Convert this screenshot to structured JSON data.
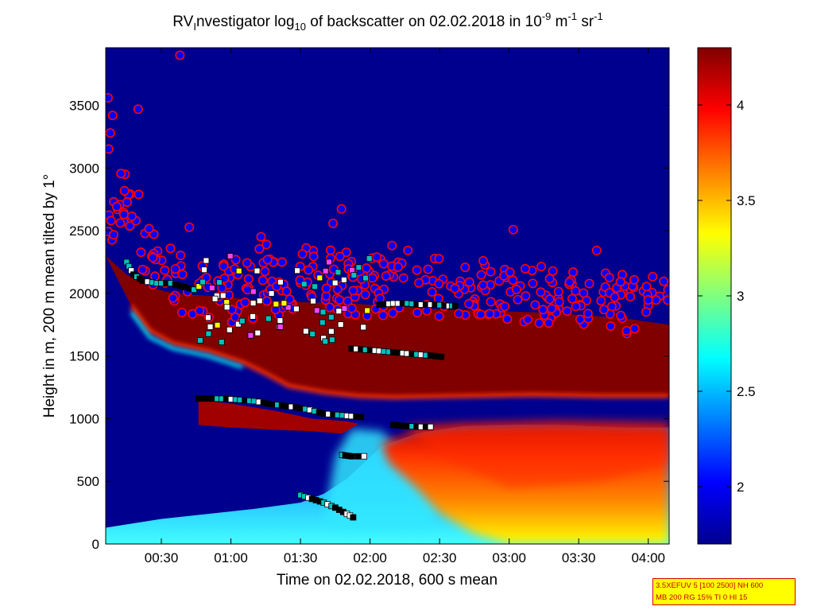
{
  "chart_data": {
    "type": "heatmap",
    "title": {
      "prefix": "RV",
      "sub_i": "I",
      "a": "nvestigator log",
      "sub_10": "10",
      "b": " of backscatter on 02.02.2018 in 10",
      "sup_m9": "-9",
      "c": " m",
      "sup_m1a": "-1",
      "d": " sr",
      "sup_m1b": "-1"
    },
    "xlabel": "Time on 02.02.2018, 600 s mean",
    "ylabel": "Height in m, 200 m mean tilted by 1°",
    "x_range_min": [
      6,
      249
    ],
    "y_range_m": [
      0,
      3960
    ],
    "x_ticks": [
      {
        "min": 30,
        "label": "00:30"
      },
      {
        "min": 60,
        "label": "01:00"
      },
      {
        "min": 90,
        "label": "01:30"
      },
      {
        "min": 120,
        "label": "02:00"
      },
      {
        "min": 150,
        "label": "02:30"
      },
      {
        "min": 180,
        "label": "03:00"
      },
      {
        "min": 210,
        "label": "03:30"
      },
      {
        "min": 240,
        "label": "04:00"
      }
    ],
    "y_ticks": [
      {
        "v": 0,
        "label": "0"
      },
      {
        "v": 500,
        "label": "500"
      },
      {
        "v": 1000,
        "label": "1000"
      },
      {
        "v": 1500,
        "label": "1500"
      },
      {
        "v": 2000,
        "label": "2000"
      },
      {
        "v": 2500,
        "label": "2500"
      },
      {
        "v": 3000,
        "label": "3000"
      },
      {
        "v": 3500,
        "label": "3500"
      }
    ],
    "colorbar": {
      "range": [
        1.7,
        4.3
      ],
      "ticks": [
        {
          "v": 2,
          "label": "2"
        },
        {
          "v": 2.5,
          "label": "2.5"
        },
        {
          "v": 3,
          "label": "3"
        },
        {
          "v": 3.5,
          "label": "3.5"
        },
        {
          "v": 4,
          "label": "4"
        }
      ],
      "colormap": "jet"
    },
    "colors": {
      "background": "#00008f",
      "cloud": "#800000",
      "circle_fill": "#0000ff",
      "circle_edge": "#ff0000"
    },
    "cloud_top_curve": [
      [
        6,
        2300
      ],
      [
        15,
        2150
      ],
      [
        25,
        2050
      ],
      [
        35,
        2000
      ],
      [
        50,
        1980
      ],
      [
        70,
        1950
      ],
      [
        90,
        1930
      ],
      [
        110,
        1920
      ],
      [
        130,
        1900
      ],
      [
        150,
        1870
      ],
      [
        170,
        1860
      ],
      [
        190,
        1850
      ],
      [
        210,
        1830
      ],
      [
        230,
        1800
      ],
      [
        249,
        1750
      ]
    ],
    "cloud_base_curve": [
      [
        17,
        1900
      ],
      [
        25,
        1700
      ],
      [
        35,
        1600
      ],
      [
        50,
        1540
      ],
      [
        65,
        1450
      ],
      [
        75,
        1360
      ],
      [
        85,
        1260
      ],
      [
        100,
        1210
      ],
      [
        115,
        1180
      ],
      [
        130,
        1170
      ],
      [
        160,
        1180
      ],
      [
        190,
        1190
      ],
      [
        220,
        1180
      ],
      [
        249,
        1180
      ]
    ],
    "lower_layer_band": [
      [
        46,
        1150
      ],
      [
        60,
        1120
      ],
      [
        80,
        1060
      ],
      [
        95,
        1000
      ],
      [
        110,
        980
      ],
      [
        115,
        960
      ]
    ],
    "lower_layer_bottom": [
      [
        46,
        950
      ],
      [
        60,
        930
      ],
      [
        80,
        910
      ],
      [
        95,
        900
      ],
      [
        108,
        880
      ]
    ],
    "aerosol_top_curve": [
      [
        6,
        130
      ],
      [
        30,
        200
      ],
      [
        70,
        280
      ],
      [
        90,
        330
      ],
      [
        100,
        400
      ],
      [
        110,
        520
      ],
      [
        125,
        780
      ],
      [
        140,
        880
      ],
      [
        160,
        940
      ],
      [
        180,
        950
      ],
      [
        200,
        950
      ],
      [
        230,
        930
      ],
      [
        249,
        930
      ]
    ],
    "cloud_base_points": [
      [
        [
          46,
          1160
        ],
        [
          52,
          1160
        ],
        [
          58,
          1158
        ],
        [
          64,
          1150
        ],
        [
          70,
          1140
        ],
        [
          76,
          1120
        ],
        [
          82,
          1105
        ],
        [
          88,
          1090
        ],
        [
          94,
          1070
        ],
        [
          100,
          1040
        ],
        [
          106,
          1030
        ],
        [
          112,
          1020
        ],
        [
          118,
          1010
        ]
      ],
      [
        [
          130,
          950
        ],
        [
          136,
          940
        ],
        [
          142,
          935
        ],
        [
          148,
          935
        ]
      ],
      [
        [
          90,
          390
        ],
        [
          95,
          360
        ],
        [
          100,
          330
        ],
        [
          105,
          290
        ],
        [
          110,
          240
        ],
        [
          114,
          200
        ]
      ],
      [
        [
          108,
          710
        ],
        [
          112,
          700
        ],
        [
          120,
          700
        ]
      ],
      [
        [
          124,
          1910
        ],
        [
          130,
          1920
        ],
        [
          136,
          1920
        ],
        [
          142,
          1910
        ],
        [
          148,
          1910
        ],
        [
          154,
          1900
        ],
        [
          158,
          1900
        ]
      ],
      [
        [
          112,
          1560
        ],
        [
          118,
          1550
        ],
        [
          124,
          1540
        ],
        [
          130,
          1530
        ],
        [
          136,
          1520
        ],
        [
          142,
          1510
        ],
        [
          148,
          1500
        ],
        [
          152,
          1490
        ]
      ],
      [
        [
          15,
          2250
        ],
        [
          18,
          2150
        ],
        [
          22,
          2100
        ],
        [
          28,
          2080
        ],
        [
          34,
          2080
        ],
        [
          40,
          2050
        ],
        [
          46,
          2020
        ]
      ]
    ],
    "top_circles": {
      "x_range": [
        6,
        249
      ],
      "curve": [
        [
          6,
          2700
        ],
        [
          15,
          2600
        ],
        [
          25,
          2300
        ],
        [
          40,
          2050
        ],
        [
          55,
          2000
        ],
        [
          70,
          2000
        ],
        [
          85,
          2100
        ],
        [
          100,
          2150
        ],
        [
          115,
          2050
        ],
        [
          130,
          2050
        ],
        [
          150,
          2050
        ],
        [
          170,
          2050
        ],
        [
          190,
          2000
        ],
        [
          210,
          1950
        ],
        [
          230,
          1920
        ],
        [
          249,
          1900
        ]
      ],
      "spread": 350,
      "count": 360
    }
  },
  "infobox": {
    "line1": "3.5XEFUV 5 [100 2500] NH 600",
    "line2": "MB 200 RG 15% TI 0 HI 15"
  }
}
